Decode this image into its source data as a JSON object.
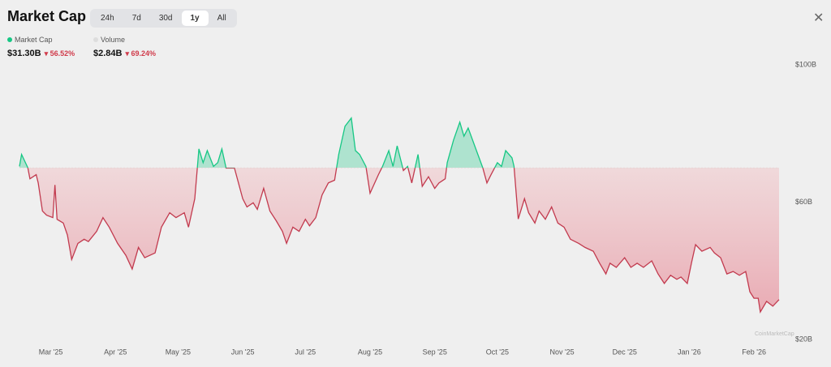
{
  "header": {
    "title": "Market Cap",
    "tabs": [
      "24h",
      "7d",
      "30d",
      "1y",
      "All"
    ],
    "active_tab": "1y"
  },
  "stats": [
    {
      "name": "Market Cap",
      "value": "$31.30B",
      "change": "56.52%"
    },
    {
      "name": "Volume",
      "value": "$2.84B",
      "change": "69.24%"
    }
  ],
  "watermark": "CoinMarketCap",
  "chart_data": {
    "type": "line",
    "x": [
      0,
      1,
      4,
      5,
      8,
      9,
      11,
      13,
      16,
      17,
      18,
      21,
      23,
      25,
      28,
      31,
      33,
      37,
      40,
      43,
      47,
      51,
      54,
      57,
      60,
      65,
      68,
      72,
      75,
      79,
      81,
      84,
      86,
      88,
      90,
      93,
      95,
      97,
      99,
      103,
      107,
      109,
      112,
      114,
      117,
      120,
      123,
      126,
      128,
      131,
      134,
      137,
      139,
      142,
      145,
      148,
      151,
      153,
      156,
      159,
      161,
      163,
      166,
      168,
      172,
      174,
      177,
      179,
      181,
      184,
      186,
      188,
      191,
      193,
      196,
      199,
      201,
      204,
      205,
      208,
      211,
      213,
      215,
      219,
      222,
      224,
      226,
      229,
      231,
      233,
      236,
      237,
      239,
      242,
      244,
      247,
      249,
      252,
      255,
      258,
      261,
      264,
      268,
      271,
      275,
      278,
      281,
      283,
      286,
      290,
      293,
      296,
      299,
      303,
      306,
      309,
      312,
      315,
      317,
      320,
      322,
      324,
      327,
      331,
      333,
      336,
      339,
      342,
      345,
      348,
      350,
      352,
      354,
      355,
      358,
      361,
      364
    ],
    "values": [
      70.4,
      73.9,
      70,
      66.8,
      68,
      65.6,
      57.4,
      56.2,
      55.5,
      65,
      55,
      53.9,
      50.4,
      43.3,
      48,
      49.2,
      48.5,
      51.5,
      55.5,
      52.7,
      48,
      44.5,
      40.5,
      46.8,
      43.8,
      45.2,
      52.7,
      56.9,
      55.5,
      56.9,
      52.7,
      61,
      75.5,
      71.5,
      75,
      70.4,
      71.5,
      75.5,
      69.9,
      69.9,
      61,
      58.6,
      59.8,
      57.9,
      64,
      57.4,
      54.6,
      51.5,
      48,
      52.7,
      51.5,
      55,
      53.1,
      55.5,
      62.1,
      65.6,
      66.4,
      73.9,
      82.1,
      84.5,
      75,
      73.9,
      70.4,
      62.6,
      68,
      70.4,
      75,
      70.4,
      76.4,
      69.2,
      70.4,
      65.6,
      73.9,
      64.6,
      67.4,
      64,
      65.6,
      66.8,
      71.5,
      78.1,
      83.3,
      79.2,
      81.6,
      75,
      70,
      65.6,
      68,
      71.5,
      70.4,
      75,
      72.9,
      70.4,
      55.1,
      61,
      56.9,
      53.9,
      57.4,
      55,
      58.6,
      53.9,
      52.7,
      49.2,
      48,
      46.8,
      45.7,
      42.2,
      39.1,
      42.2,
      41,
      43.8,
      41,
      42.2,
      41,
      42.9,
      39.1,
      36.3,
      38.7,
      37.5,
      38.2,
      36.3,
      42.2,
      47.6,
      45.7,
      46.8,
      45.2,
      43.8,
      39.1,
      39.8,
      38.7,
      39.8,
      33.9,
      32,
      32,
      28,
      31.1,
      29.7,
      31.6
    ],
    "baseline": 70,
    "up_color": "#16c784",
    "down_color": "#c23a4e",
    "xlim": [
      0,
      364
    ],
    "xticks": [
      {
        "value": 15,
        "label": "Mar '25"
      },
      {
        "value": 46,
        "label": "Apr '25"
      },
      {
        "value": 76,
        "label": "May '25"
      },
      {
        "value": 107,
        "label": "Jun '25"
      },
      {
        "value": 137,
        "label": "Jul '25"
      },
      {
        "value": 168,
        "label": "Aug '25"
      },
      {
        "value": 199,
        "label": "Sep '25"
      },
      {
        "value": 229,
        "label": "Oct '25"
      },
      {
        "value": 260,
        "label": "Nov '25"
      },
      {
        "value": 290,
        "label": "Dec '25"
      },
      {
        "value": 321,
        "label": "Jan '26"
      },
      {
        "value": 352,
        "label": "Feb '26"
      }
    ],
    "ylim": [
      20,
      100
    ],
    "yticks": [
      {
        "value": 20,
        "label": "$20B"
      },
      {
        "value": 60,
        "label": "$60B"
      },
      {
        "value": 100,
        "label": "$100B"
      }
    ]
  }
}
